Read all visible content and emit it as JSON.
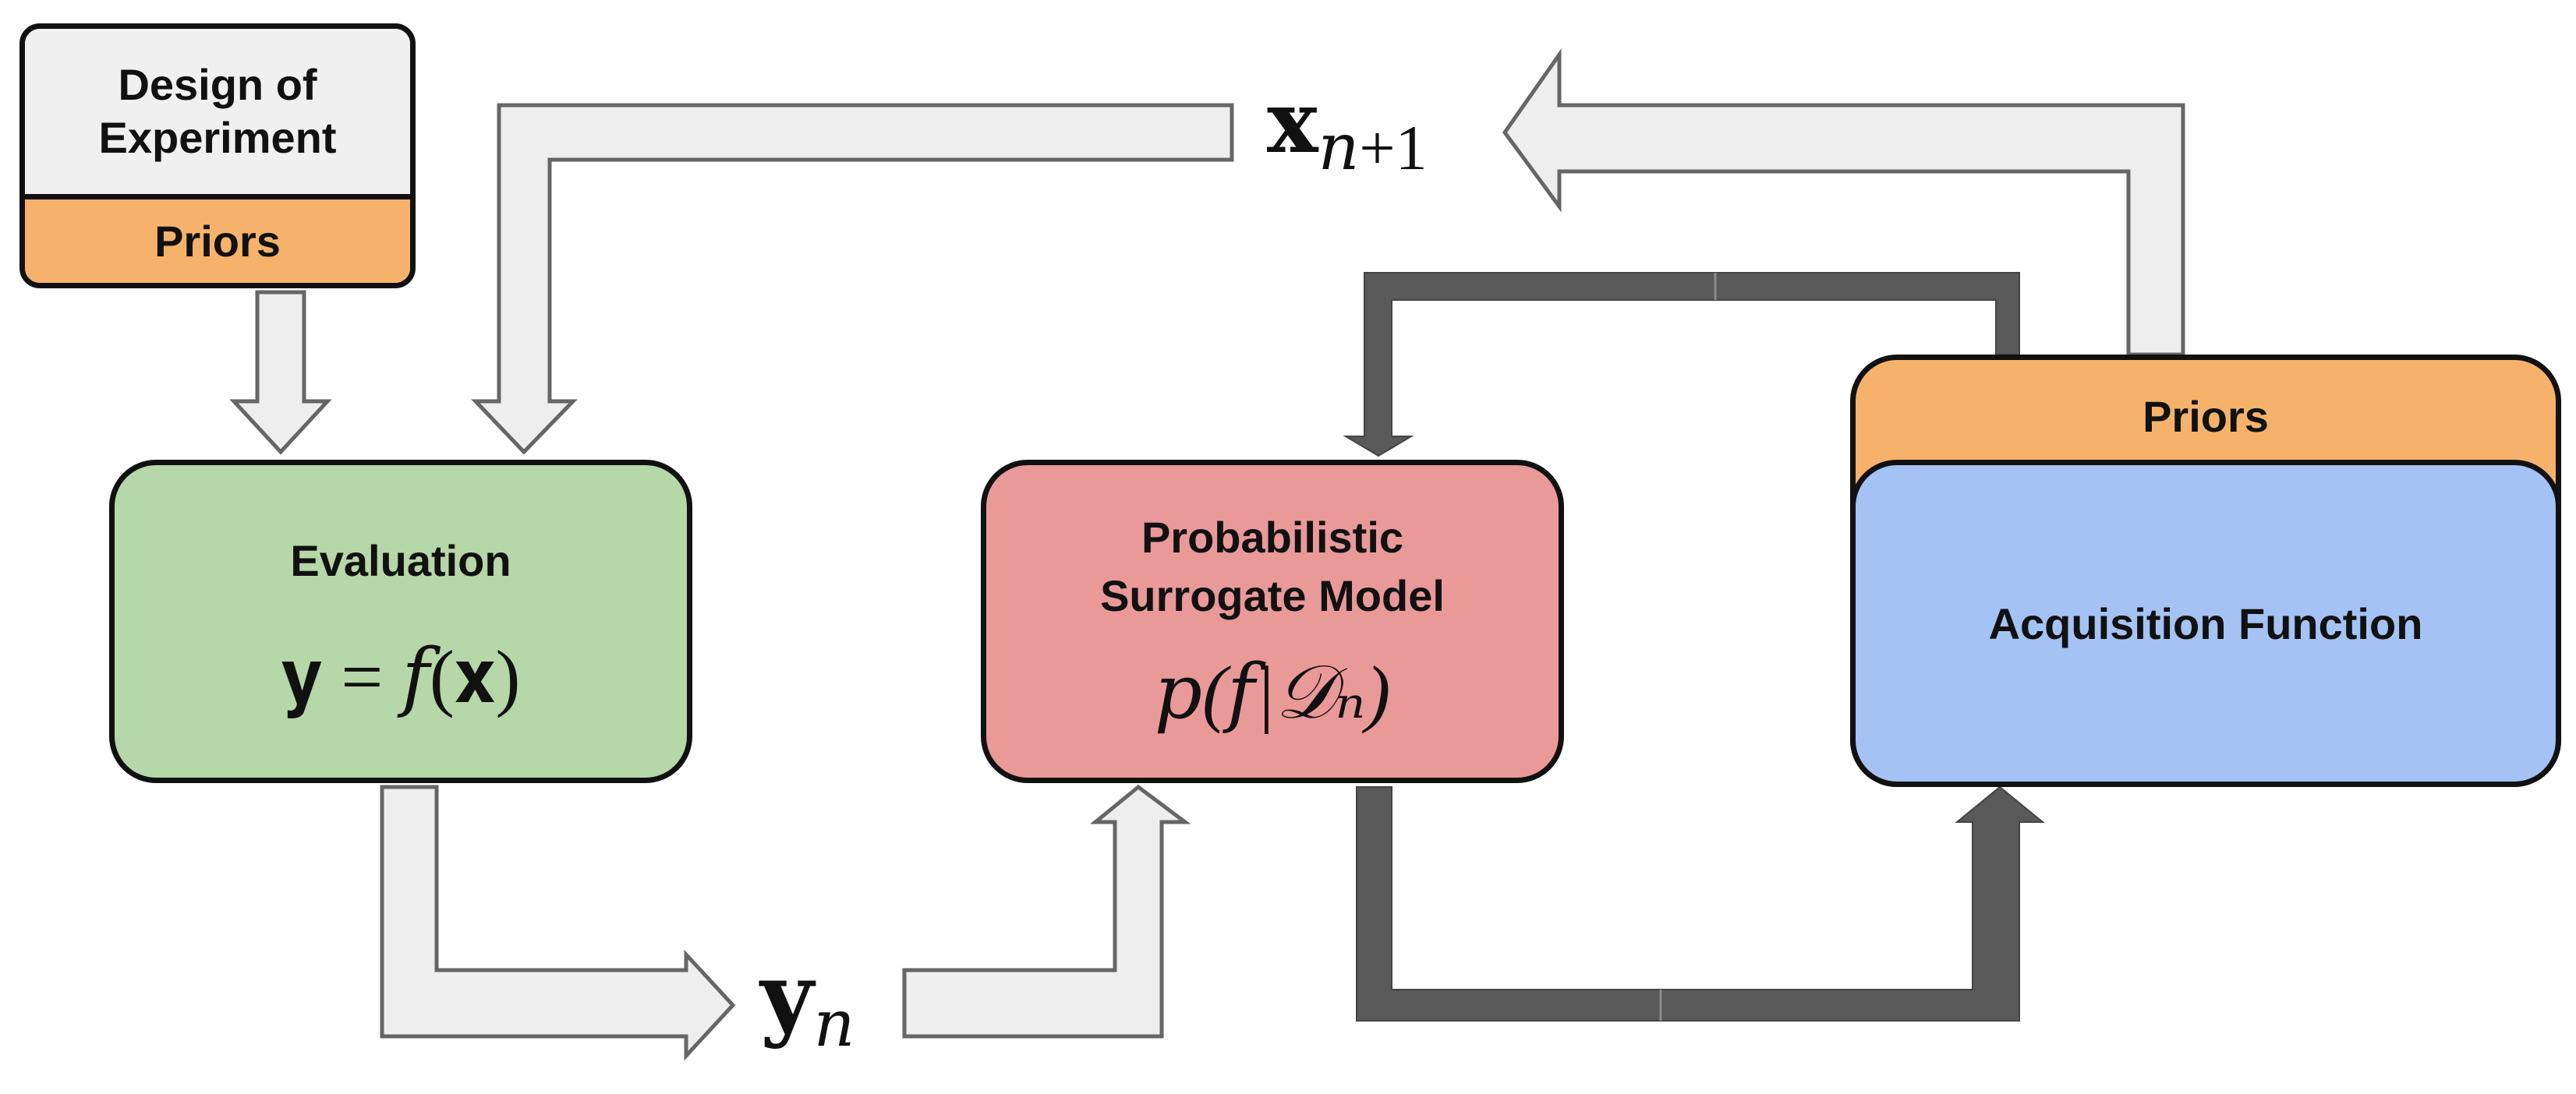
{
  "colors": {
    "doe_top": "#f0f0f0",
    "priors": "#f6b26b",
    "evaluation": "#b6d7a8",
    "surrogate": "#ea9999",
    "acquisition": "#a4c2f4",
    "hollow_arrow_fill": "#eeeeee",
    "hollow_arrow_stroke": "#666666",
    "dark_arrow": "#595959"
  },
  "design_of_experiment": {
    "title_line1": "Design of",
    "title_line2": "Experiment",
    "priors_label": "Priors"
  },
  "evaluation": {
    "title": "Evaluation",
    "formula": "𝐲 = 𝑓(𝐱)"
  },
  "surrogate": {
    "title_line1": "Probabilistic",
    "title_line2": "Surrogate Model",
    "formula": "𝑝(𝑓|𝒟ₙ)"
  },
  "acquisition": {
    "priors_label": "Priors",
    "title": "Acquisition Function"
  },
  "labels": {
    "x_next": "𝐱",
    "x_next_sub": "𝑛+1",
    "y_n": "𝐲",
    "y_n_sub": "𝑛"
  }
}
